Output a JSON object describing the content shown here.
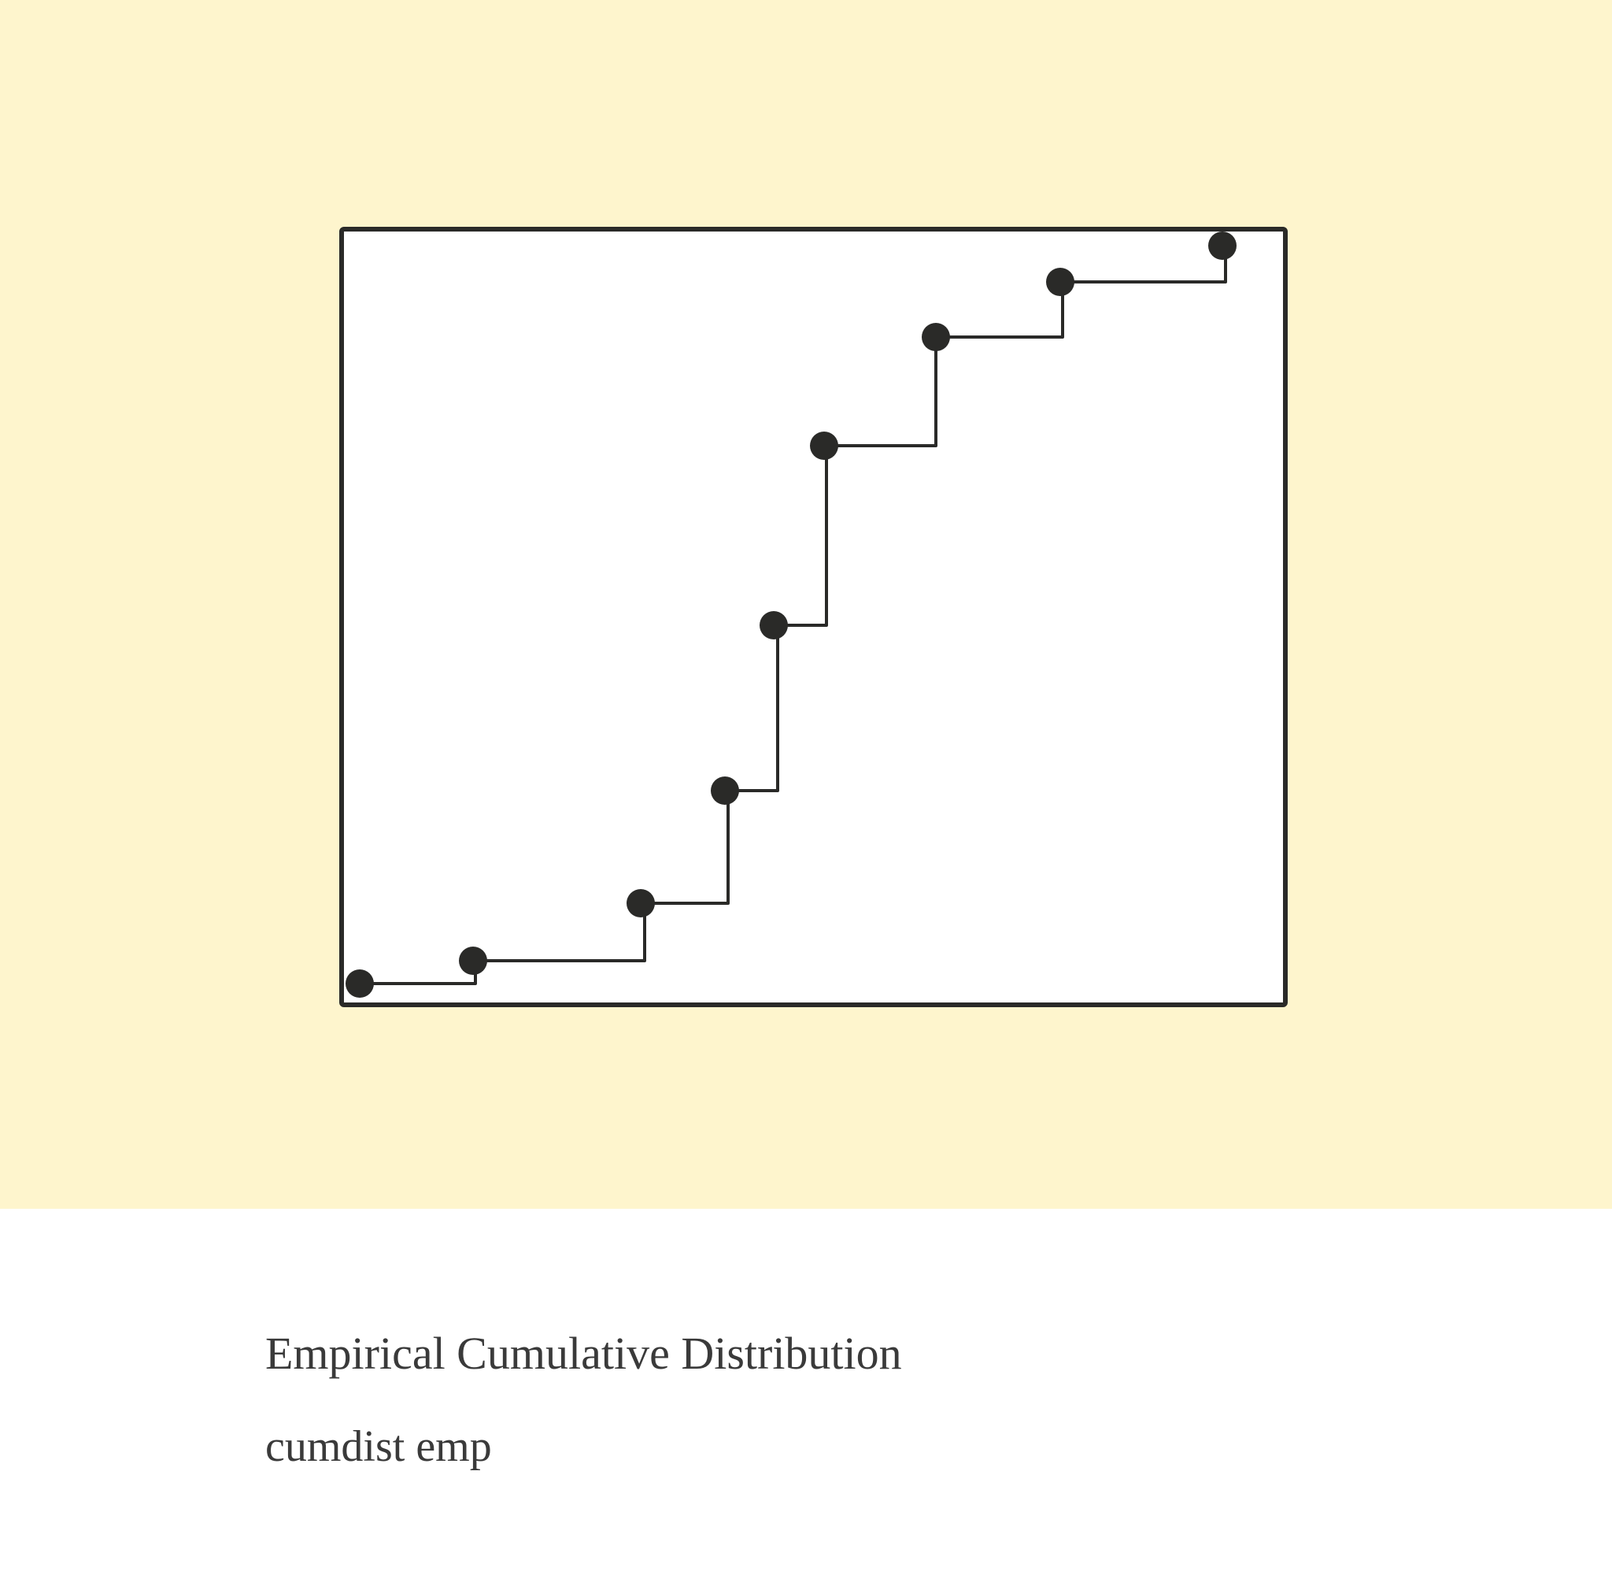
{
  "card": {
    "title": "Empirical Cumulative Distribution",
    "subtitle": "cumdist emp"
  }
}
